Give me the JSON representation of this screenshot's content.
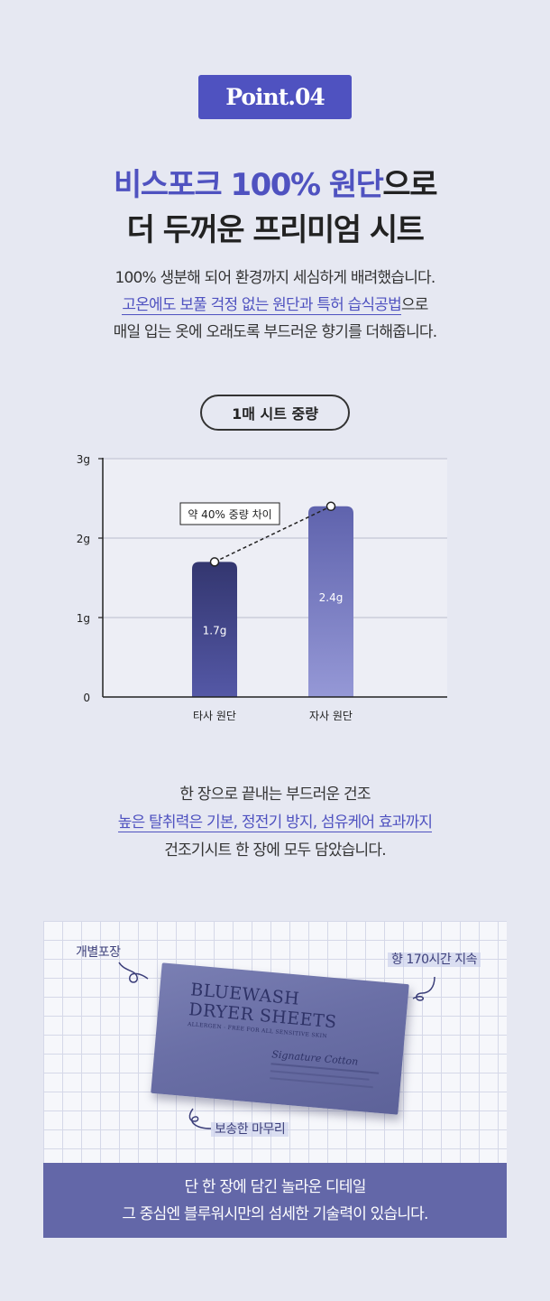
{
  "badge": "Point.04",
  "headline": {
    "line1_highlight": "비스포크 100% 원단",
    "line1_rest": "으로",
    "line2": "더 두꺼운 프리미엄 시트"
  },
  "description": {
    "line1": "100% 생분해 되어 환경까지 세심하게 배려했습니다.",
    "line2_highlight": "고온에도 보풀 걱정 없는 원단과 특허 습식공법",
    "line2_rest": "으로",
    "line3": "매일 입는 옷에 오래도록 부드러운 향기를 더해줍니다."
  },
  "chart_title": "1매 시트 중량",
  "chart_data": {
    "type": "bar",
    "categories": [
      "타사 원단",
      "자사 원단"
    ],
    "values": [
      1.7,
      2.4
    ],
    "data_labels": [
      "1.7g",
      "2.4g"
    ],
    "ytick_labels": [
      "0",
      "1g",
      "2g",
      "3g"
    ],
    "ylim": [
      0,
      3
    ],
    "grid": true,
    "annotation": "약 40% 중량 차이",
    "colors": [
      "#3b3e82",
      "#7478c0"
    ]
  },
  "description2": {
    "line1": "한 장으로 끝내는 부드러운 건조",
    "line2_highlight": "높은 탈취력은 기본, 정전기 방지, 섬유케어 효과까지",
    "line3": "건조기시트 한 장에 모두 담았습니다."
  },
  "product": {
    "brand_line1": "BLUEWASH",
    "brand_line2": "DRYER SHEETS",
    "tagline": "ALLERGEN - FREE FOR ALL SENSITIVE SKIN",
    "scent": "Signature Cotton",
    "label_individual": "개별포장",
    "label_scent": "향 170시간 지속",
    "label_finish": "보송한 마무리"
  },
  "caption": {
    "line1": "단 한 장에 담긴 놀라운 디테일",
    "line2": "그 중심엔 블루워시만의 섬세한 기술력이 있습니다."
  },
  "colors": {
    "accent": "#4f52c0",
    "background": "#e6e8f2",
    "caption_bar": "#6367a8"
  }
}
